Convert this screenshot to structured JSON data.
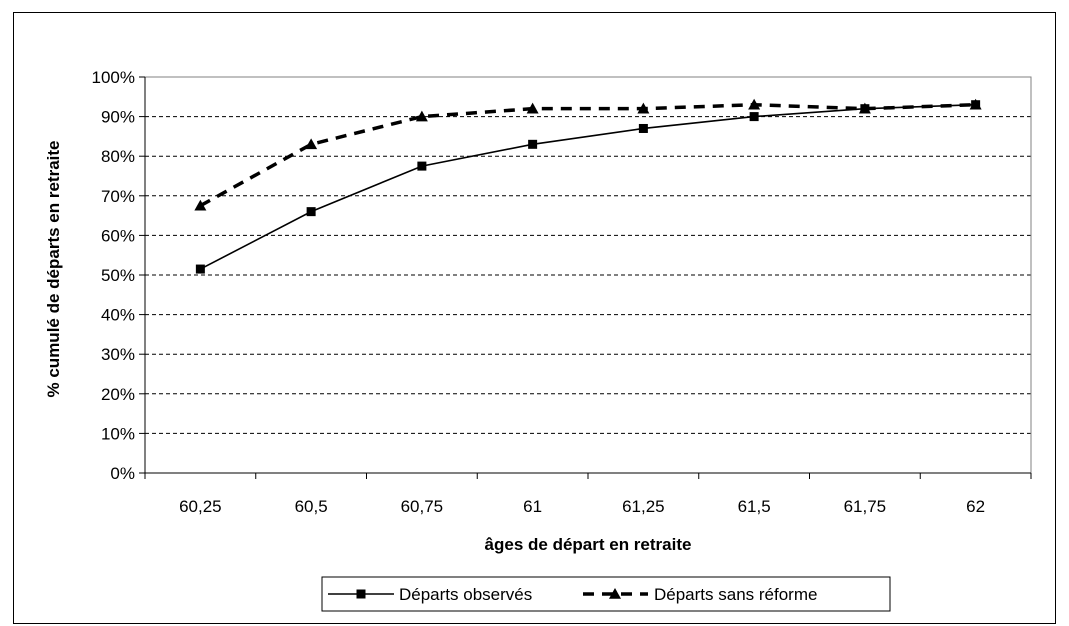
{
  "chart_data": {
    "type": "line",
    "title": "",
    "xlabel": "âges de départ en retraite",
    "ylabel": "% cumulé de départs en retraite",
    "categories": [
      "60,25",
      "60,5",
      "60,75",
      "61",
      "61,25",
      "61,5",
      "61,75",
      "62"
    ],
    "yticks": [
      "0%",
      "10%",
      "20%",
      "30%",
      "40%",
      "50%",
      "60%",
      "70%",
      "80%",
      "90%",
      "100%"
    ],
    "ylim": [
      0,
      100
    ],
    "grid": "horizontal dashed",
    "legend_position": "bottom",
    "series": [
      {
        "name": "Départs observés",
        "marker": "square",
        "line_style": "solid",
        "color": "#000000",
        "values": [
          51.5,
          66,
          77.5,
          83,
          87,
          90,
          92,
          93
        ]
      },
      {
        "name": "Départs sans réforme",
        "marker": "triangle",
        "line_style": "dashed",
        "color": "#000000",
        "values": [
          67.5,
          83,
          90,
          92,
          92,
          93,
          92,
          93
        ]
      }
    ]
  }
}
